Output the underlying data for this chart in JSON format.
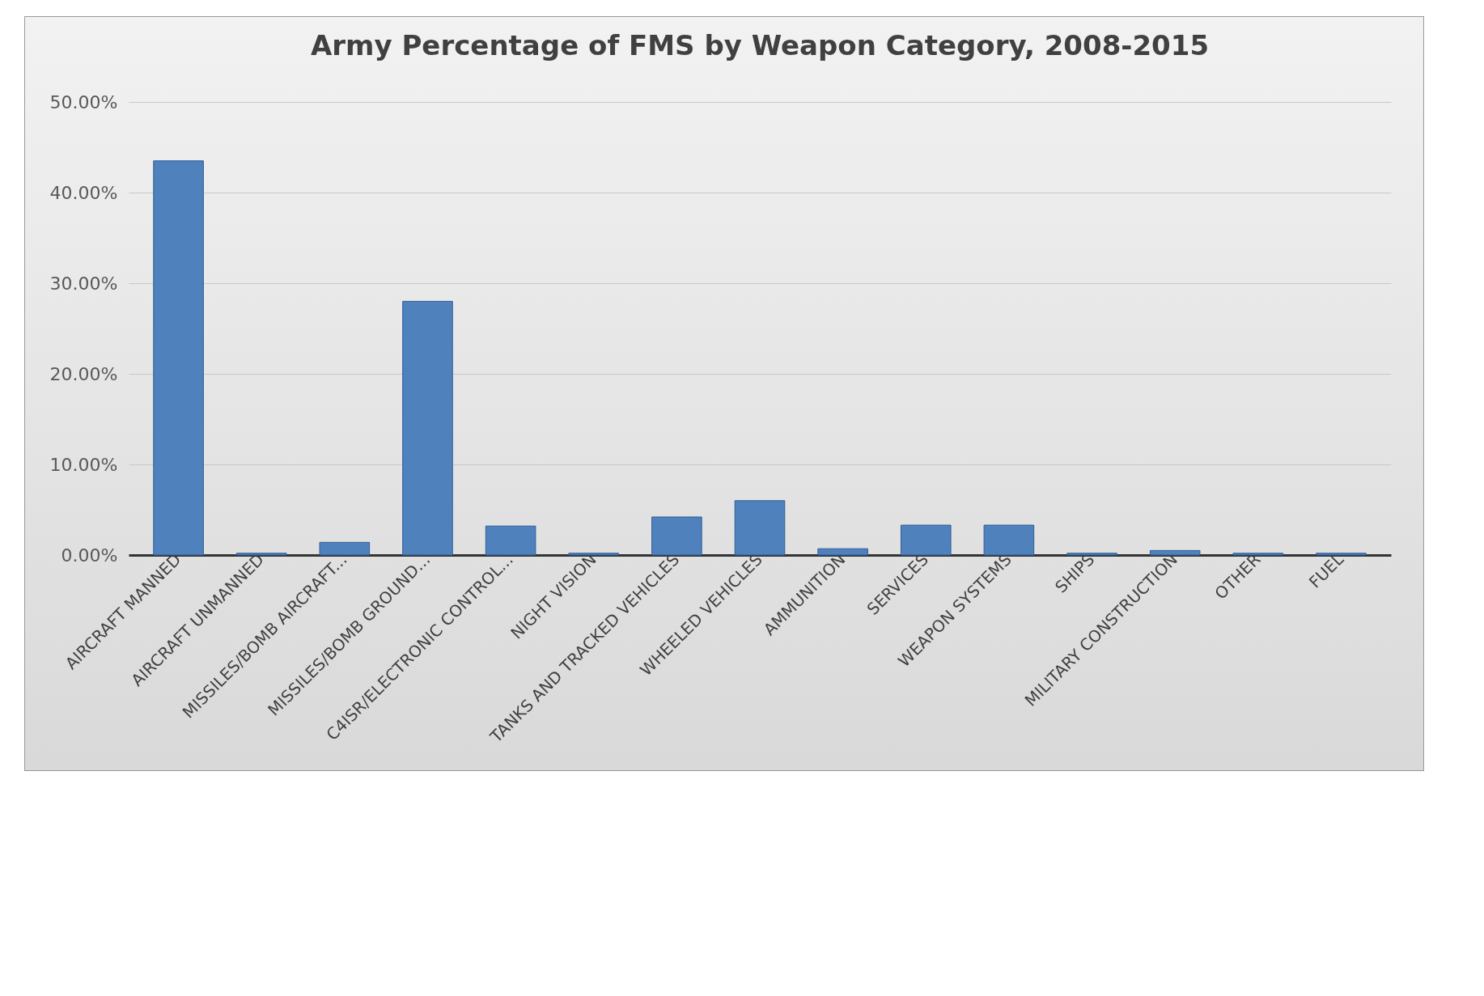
{
  "chart_data": {
    "type": "bar",
    "title": "Army Percentage of FMS by Weapon Category, 2008-2015",
    "categories": [
      "AIRCRAFT MANNED",
      "AIRCRAFT UNMANNED",
      "MISSILES/BOMB AIRCRAFT...",
      "MISSILES/BOMB GROUND...",
      "C4ISR/ELECTRONIC CONTROL...",
      "NIGHT VISION",
      "TANKS AND TRACKED VEHICLES",
      "WHEELED VEHICLES",
      "AMMUNITION",
      "SERVICES",
      "WEAPON SYSTEMS",
      "SHIPS",
      "MILITARY CONSTRUCTION",
      "OTHER",
      "FUEL"
    ],
    "values": [
      43.5,
      0.2,
      1.4,
      28,
      3.2,
      0.2,
      4.2,
      6,
      0.7,
      3.3,
      3.3,
      0.2,
      0.5,
      0.2,
      0.2
    ],
    "color": "#4f81bd",
    "ylim": [
      0,
      50
    ],
    "yticks": [
      {
        "value": 0,
        "label": "0.00%"
      },
      {
        "value": 10,
        "label": "10.00%"
      },
      {
        "value": 20,
        "label": "20.00%"
      },
      {
        "value": 30,
        "label": "30.00%"
      },
      {
        "value": 40,
        "label": "40.00%"
      },
      {
        "value": 50,
        "label": "50.00%"
      }
    ],
    "grid": "y"
  }
}
